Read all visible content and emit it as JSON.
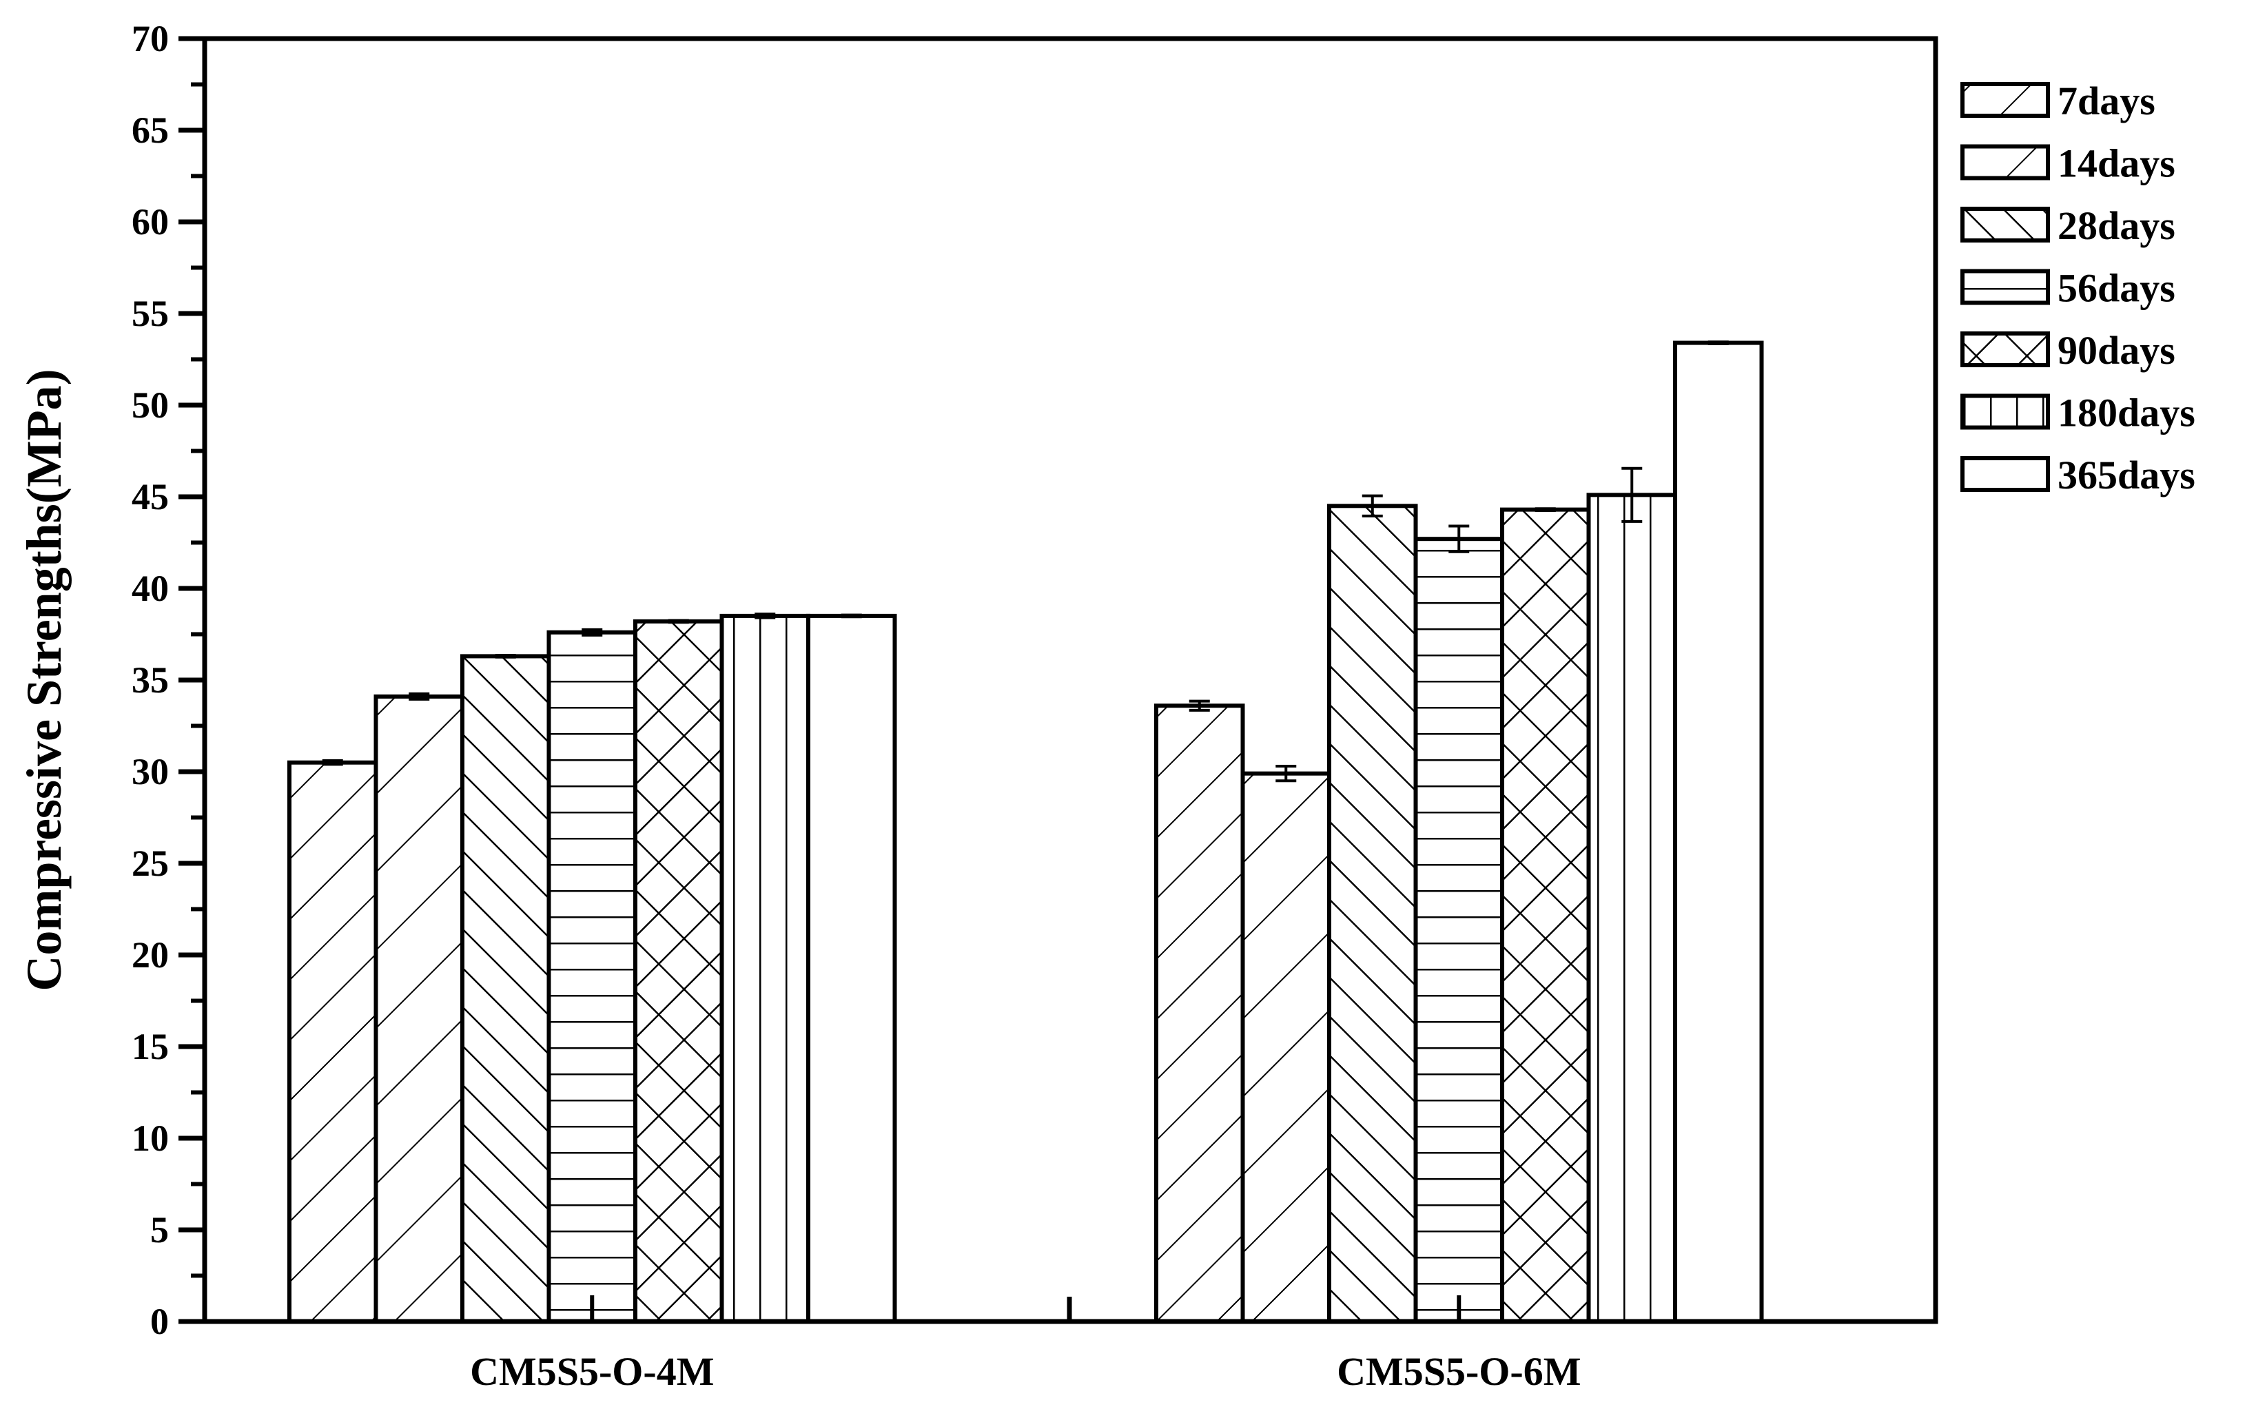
{
  "chart_data": {
    "type": "bar",
    "title": "",
    "xlabel": "",
    "ylabel": "Compressive Strengths(MPa)",
    "ylim": [
      0,
      70
    ],
    "yticks": [
      0,
      5,
      10,
      15,
      20,
      25,
      30,
      35,
      40,
      45,
      50,
      55,
      60,
      65,
      70
    ],
    "grid": false,
    "legend_position": "right-outside-top",
    "categories": [
      "CM5S5-O-4M",
      "CM5S5-O-6M"
    ],
    "series": [
      {
        "name": "7days",
        "pattern": "hatch-forward-dense",
        "values": [
          30.5,
          33.6
        ],
        "errors": [
          0.1,
          0.25
        ]
      },
      {
        "name": "14days",
        "pattern": "hatch-forward-sparse",
        "values": [
          34.1,
          29.9
        ],
        "errors": [
          0.15,
          0.4
        ]
      },
      {
        "name": "28days",
        "pattern": "hatch-backward",
        "values": [
          36.3,
          44.5
        ],
        "errors": [
          0.05,
          0.55
        ]
      },
      {
        "name": "56days",
        "pattern": "horizontal-lines",
        "values": [
          37.6,
          42.7
        ],
        "errors": [
          0.15,
          0.7
        ]
      },
      {
        "name": "90days",
        "pattern": "crosshatch",
        "values": [
          38.2,
          44.3
        ],
        "errors": [
          0.05,
          0.05
        ]
      },
      {
        "name": "180days",
        "pattern": "vertical-lines",
        "values": [
          38.5,
          45.1
        ],
        "errors": [
          0.1,
          1.45
        ]
      },
      {
        "name": "365days",
        "pattern": "empty",
        "values": [
          38.5,
          53.4
        ],
        "errors": [
          0.05,
          0.05
        ]
      }
    ]
  },
  "colors": {
    "line": "#000000",
    "background": "#ffffff"
  }
}
